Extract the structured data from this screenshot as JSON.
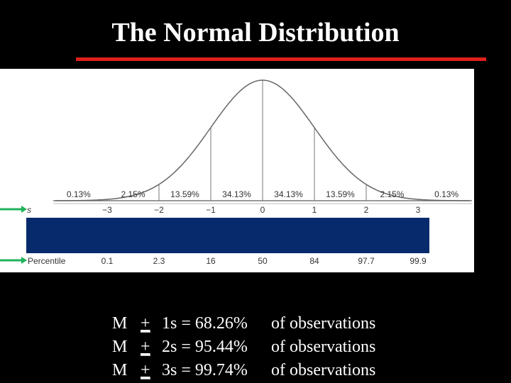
{
  "header": {
    "title": "The Normal Distribution"
  },
  "figure": {
    "areas": [
      "0.13%",
      "2.15%",
      "13.59%",
      "34.13%",
      "34.13%",
      "13.59%",
      "2.15%",
      "0.13%"
    ],
    "s_label": "s",
    "s_values": [
      "−3",
      "−2",
      "−1",
      "0",
      "1",
      "2",
      "3"
    ],
    "percentile_label": "Percentile",
    "percentiles": [
      "0.1",
      "2.3",
      "16",
      "50",
      "84",
      "97.7",
      "99.9"
    ]
  },
  "lines": [
    {
      "mean": "M",
      "sign": "+",
      "expr": "1s = 68.26%",
      "tail": "of observations"
    },
    {
      "mean": "M",
      "sign": "+",
      "expr": "2s = 95.44%",
      "tail": "of observations"
    },
    {
      "mean": "M",
      "sign": "+",
      "expr": "3s = 99.74%",
      "tail": "of observations"
    }
  ]
}
